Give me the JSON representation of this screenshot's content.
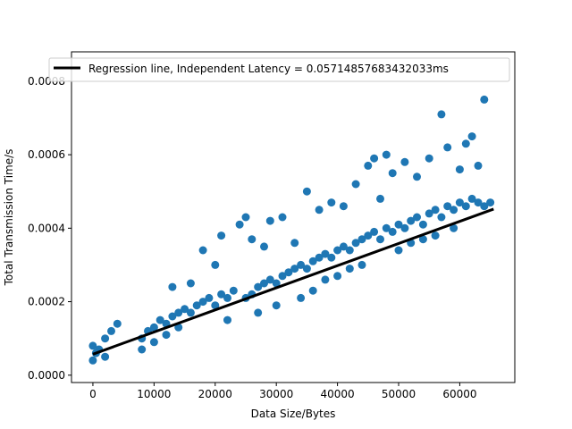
{
  "chart_data": {
    "type": "scatter",
    "xlabel": "Data Size/Bytes",
    "ylabel": "Total Transmission Time/s",
    "xlim": [
      -3500,
      69000
    ],
    "ylim": [
      -2e-05,
      0.00088
    ],
    "x_ticks": [
      0,
      10000,
      20000,
      30000,
      40000,
      50000,
      60000
    ],
    "x_tick_labels": [
      "0",
      "10000",
      "20000",
      "30000",
      "40000",
      "50000",
      "60000"
    ],
    "y_ticks": [
      0.0,
      0.0002,
      0.0004,
      0.0006,
      0.0008
    ],
    "y_tick_labels": [
      "0.0000",
      "0.0002",
      "0.0004",
      "0.0006",
      "0.0008"
    ],
    "grid": false,
    "legend_position": "top-right",
    "series": [
      {
        "name": "Regression line, Independent Latency = 0.05714857683432033ms",
        "type": "line",
        "color": "#000000",
        "x": [
          0,
          65535
        ],
        "y": [
          5.71e-05,
          0.000452
        ]
      },
      {
        "type": "scatter",
        "color": "#1f77b4",
        "x": [
          0,
          500,
          1000,
          2000,
          3000,
          4000,
          0,
          2000,
          8000,
          9000,
          10000,
          11000,
          12000,
          13000,
          14000,
          15000,
          16000,
          17000,
          18000,
          19000,
          20000,
          21000,
          22000,
          23000,
          25000,
          26000,
          27000,
          28000,
          29000,
          30000,
          31000,
          32000,
          33000,
          34000,
          35000,
          36000,
          37000,
          38000,
          39000,
          40000,
          41000,
          42000,
          43000,
          44000,
          45000,
          46000,
          47000,
          48000,
          49000,
          50000,
          51000,
          52000,
          53000,
          54000,
          55000,
          56000,
          57000,
          58000,
          59000,
          60000,
          61000,
          62000,
          63000,
          64000,
          65000,
          13000,
          16000,
          18000,
          20000,
          21000,
          24000,
          25000,
          26000,
          28000,
          29000,
          31000,
          33000,
          35000,
          37000,
          39000,
          41000,
          43000,
          45000,
          46000,
          47000,
          48000,
          49000,
          51000,
          53000,
          55000,
          57000,
          58000,
          60000,
          61000,
          62000,
          63000,
          64000,
          8000,
          10000,
          12000,
          14000,
          22000,
          27000,
          30000,
          34000,
          36000,
          38000,
          40000,
          42000,
          44000,
          50000,
          52000,
          54000,
          56000,
          59000
        ],
        "y": [
          8e-05,
          6e-05,
          7e-05,
          0.0001,
          0.00012,
          0.00014,
          4e-05,
          5e-05,
          0.0001,
          0.00012,
          0.00013,
          0.00015,
          0.00014,
          0.00016,
          0.00017,
          0.00018,
          0.00017,
          0.00019,
          0.0002,
          0.00021,
          0.00019,
          0.00022,
          0.00021,
          0.00023,
          0.00021,
          0.00022,
          0.00024,
          0.00025,
          0.00026,
          0.00025,
          0.00027,
          0.00028,
          0.00029,
          0.0003,
          0.00029,
          0.00031,
          0.00032,
          0.00033,
          0.00032,
          0.00034,
          0.00035,
          0.00034,
          0.00036,
          0.00037,
          0.00038,
          0.00039,
          0.00037,
          0.0004,
          0.00039,
          0.00041,
          0.0004,
          0.00042,
          0.00043,
          0.00041,
          0.00044,
          0.00045,
          0.00043,
          0.00046,
          0.00045,
          0.00047,
          0.00046,
          0.00048,
          0.00047,
          0.00046,
          0.00047,
          0.00024,
          0.00025,
          0.00034,
          0.0003,
          0.00038,
          0.00041,
          0.00043,
          0.00037,
          0.00035,
          0.00042,
          0.00043,
          0.00036,
          0.0005,
          0.00045,
          0.00047,
          0.00046,
          0.00052,
          0.00057,
          0.00059,
          0.00048,
          0.0006,
          0.00055,
          0.00058,
          0.00054,
          0.00059,
          0.00071,
          0.00062,
          0.00056,
          0.00063,
          0.00065,
          0.00057,
          0.00075,
          7e-05,
          9e-05,
          0.00011,
          0.00013,
          0.00015,
          0.00017,
          0.00019,
          0.00021,
          0.00023,
          0.00026,
          0.00027,
          0.00029,
          0.0003,
          0.00034,
          0.00036,
          0.00037,
          0.00038,
          0.0004
        ]
      }
    ]
  }
}
